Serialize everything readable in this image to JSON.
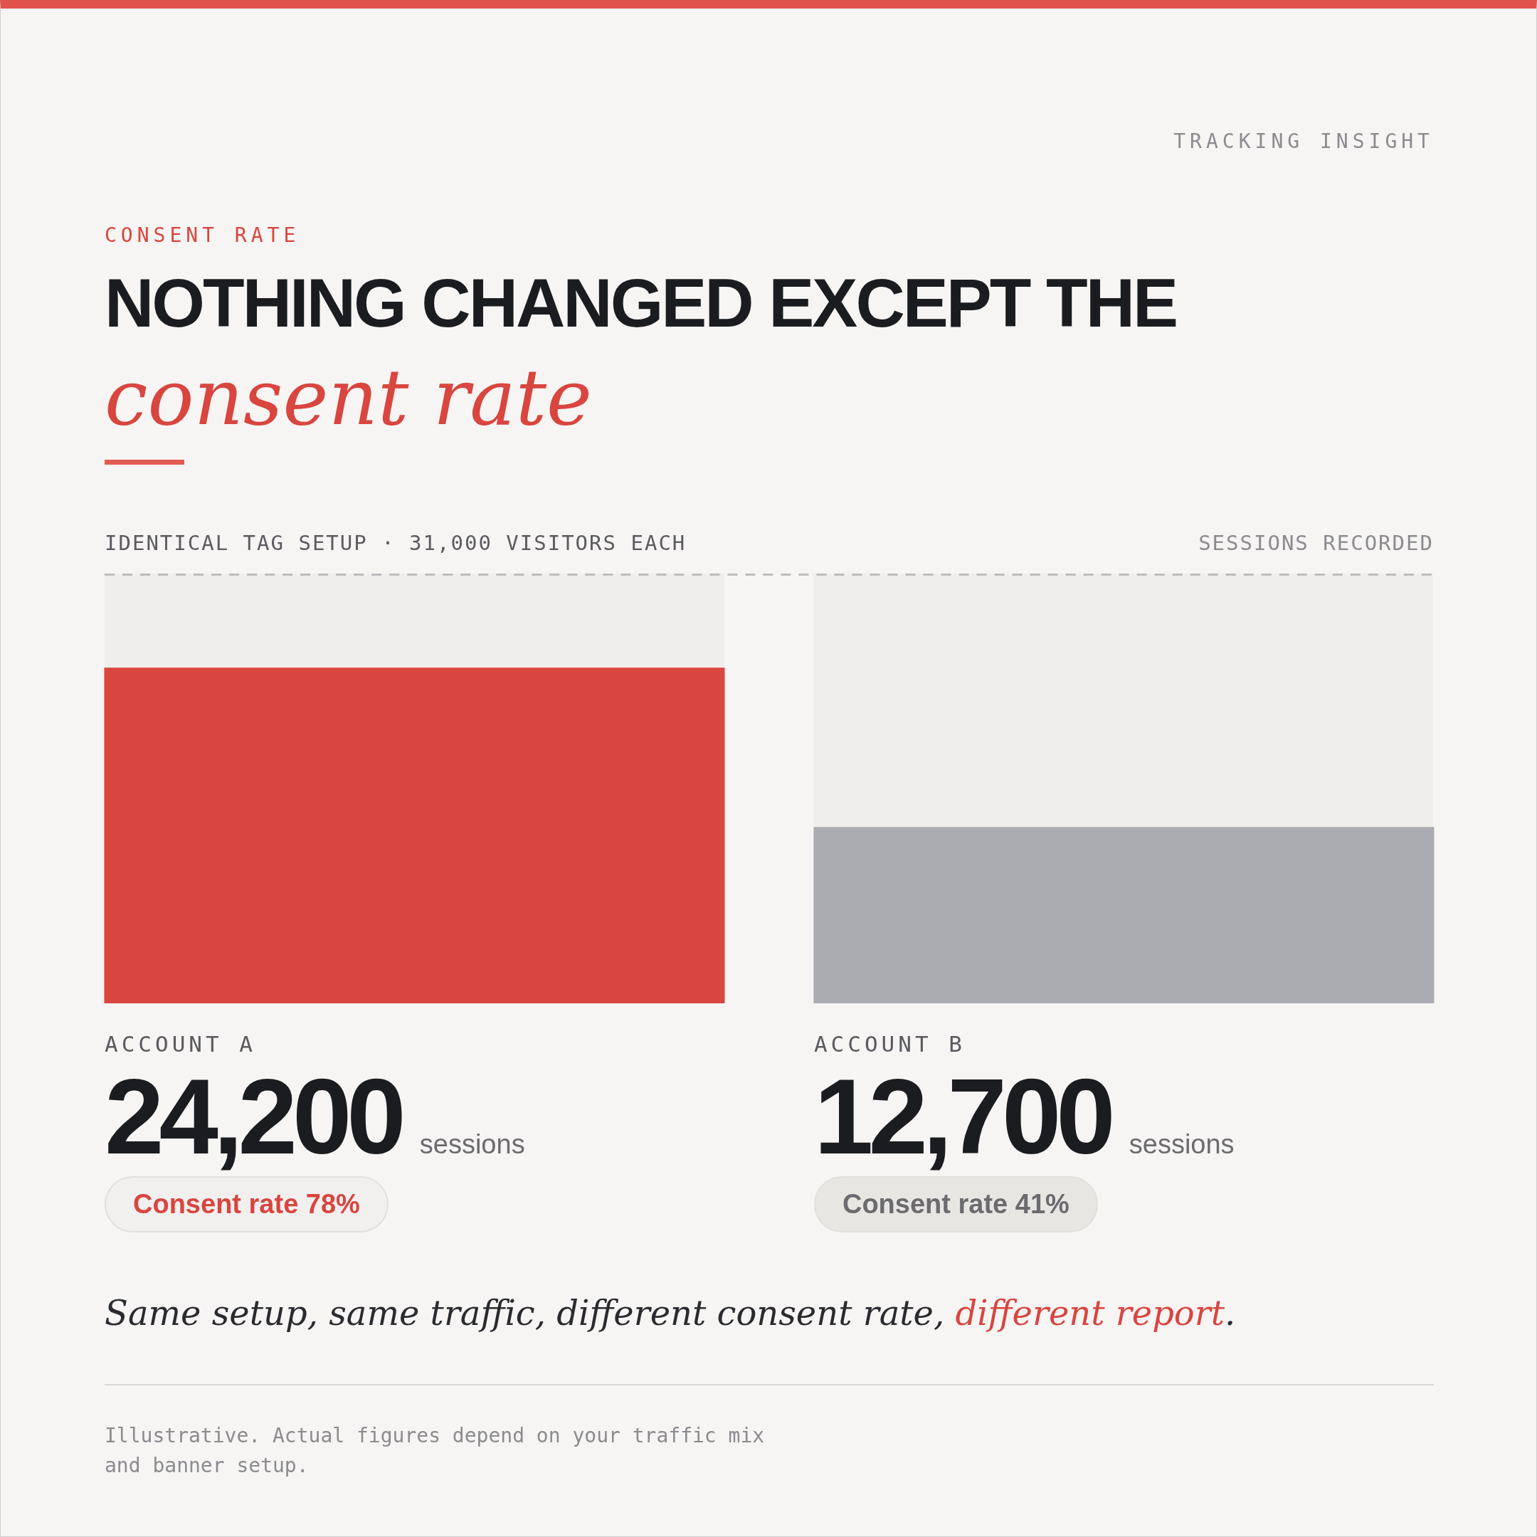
{
  "chart_data": {
    "type": "bar",
    "title": "NOTHING CHANGED EXCEPT THE consent rate",
    "subtitle": "IDENTICAL TAG SETUP · 31,000 VISITORS EACH",
    "ylabel": "SESSIONS RECORDED",
    "categories": [
      "ACCOUNT A",
      "ACCOUNT B"
    ],
    "values": [
      24200,
      12700
    ],
    "colors": [
      "#d9453f",
      "#abacb1"
    ],
    "value_labels": [
      "24,200",
      "12,700"
    ],
    "ylim": [
      0,
      31000
    ],
    "ref_lines": [
      {
        "axis": "y",
        "value": 31000,
        "color": "#bcbcc0",
        "line_style": "dashed"
      }
    ],
    "annotations": [
      "TRACKING INSIGHT",
      "CONSENT RATE",
      "sessions",
      "Consent rate 78%",
      "sessions",
      "Consent rate 41%",
      "Same setup, same traffic, different consent rate, different report.",
      "Illustrative. Actual figures depend on your traffic mix and banner setup."
    ]
  }
}
